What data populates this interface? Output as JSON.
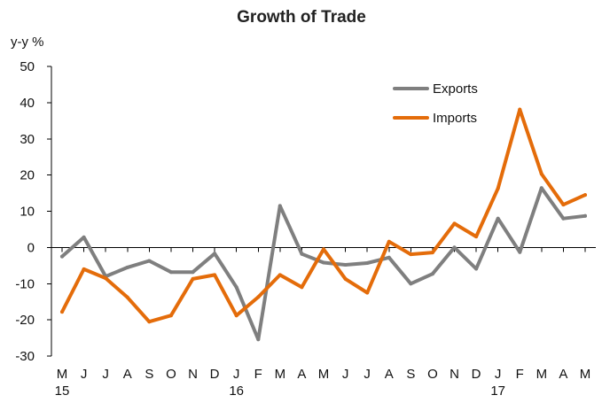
{
  "chart_data": {
    "type": "line",
    "title": "Growth of Trade",
    "ylabel": "y-y %",
    "xlabel": "",
    "ylim": [
      -30,
      50
    ],
    "yticks": [
      50,
      40,
      30,
      20,
      10,
      0,
      -10,
      -20,
      -30
    ],
    "categories": [
      "M",
      "J",
      "J",
      "A",
      "S",
      "O",
      "N",
      "D",
      "J",
      "F",
      "M",
      "A",
      "M",
      "J",
      "J",
      "A",
      "S",
      "O",
      "N",
      "D",
      "J",
      "F",
      "M",
      "A",
      "M"
    ],
    "year_labels": [
      {
        "index": 0,
        "label": "15"
      },
      {
        "index": 8,
        "label": "16"
      },
      {
        "index": 20,
        "label": "17"
      }
    ],
    "legend_position": "top-right",
    "grid": false,
    "series": [
      {
        "name": "Exports",
        "color": "#7f7f7f",
        "values": [
          -2.5,
          2.8,
          -8,
          -5.5,
          -3.7,
          -6.8,
          -6.8,
          -1.7,
          -11,
          -25.4,
          11.5,
          -1.8,
          -4.2,
          -4.8,
          -4.3,
          -2.8,
          -10,
          -7.3,
          0,
          -5.9,
          8,
          -1.3,
          16.4,
          8,
          8.7
        ]
      },
      {
        "name": "Imports",
        "color": "#e46c0a",
        "values": [
          -17.8,
          -6,
          -8.5,
          -13.8,
          -20.5,
          -18.8,
          -8.7,
          -7.6,
          -18.8,
          -13.7,
          -7.6,
          -11,
          -0.5,
          -8.7,
          -12.5,
          1.6,
          -1.9,
          -1.4,
          6.6,
          3,
          16.3,
          38.1,
          20.3,
          11.8,
          14.5
        ]
      }
    ]
  }
}
